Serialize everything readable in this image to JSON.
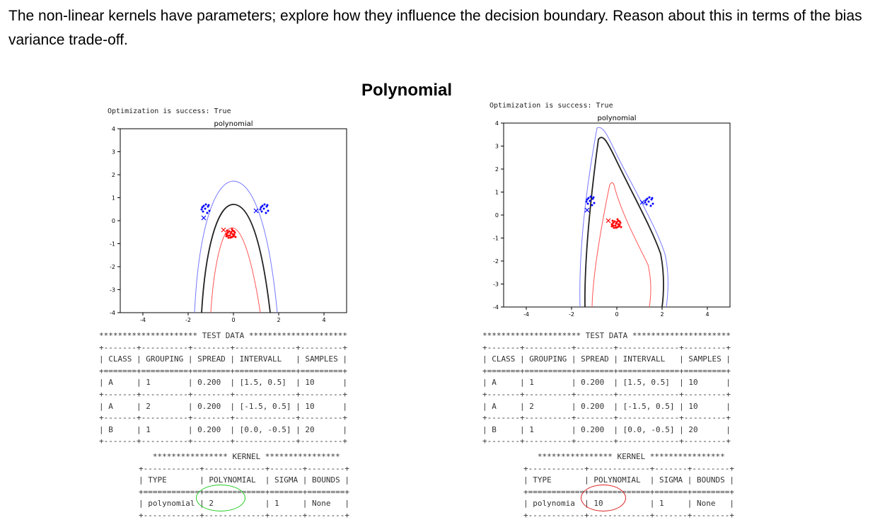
{
  "instruction_text": "The non-linear kernels have parameters; explore how they influence the decision boundary. Reason about this in terms of the bias variance trade-off.",
  "section_title": "Polynomial",
  "panels": [
    {
      "optimization_text": "Optimization is success: True",
      "plot_title": "polynomial",
      "xticks": [
        "-4",
        "-2",
        "0",
        "2",
        "4"
      ],
      "yticks": [
        "4",
        "3",
        "2",
        "1",
        "0",
        "-1",
        "-2",
        "-3",
        "-4"
      ],
      "test_data_banner": "********************* TEST DATA *********************",
      "test_table": {
        "headers": [
          "CLASS",
          "GROUPING",
          "SPREAD",
          "INTERVALL",
          "SAMPLES"
        ],
        "rows": [
          [
            "A",
            "1",
            "0.200",
            "[1.5, 0.5]",
            "10"
          ],
          [
            "A",
            "2",
            "0.200",
            "[-1.5, 0.5]",
            "10"
          ],
          [
            "B",
            "1",
            "0.200",
            "[0.0, -0.5]",
            "20"
          ]
        ]
      },
      "kernel_banner": "**************** KERNEL ****************",
      "kernel_table": {
        "headers": [
          "TYPE",
          "POLYNOMIAL",
          "SIGMA",
          "BOUNDS"
        ],
        "row": [
          "polynomial",
          "2",
          "1",
          "None"
        ]
      },
      "highlight_color": "#22cc22"
    },
    {
      "optimization_text": "Optimization is success: True",
      "plot_title": "polynomial",
      "xticks": [
        "-4",
        "-2",
        "0",
        "2",
        "4"
      ],
      "yticks": [
        "4",
        "3",
        "2",
        "1",
        "0",
        "-1",
        "-2",
        "-3",
        "-4"
      ],
      "test_data_banner": "********************* TEST DATA *********************",
      "test_table": {
        "headers": [
          "CLASS",
          "GROUPING",
          "SPREAD",
          "INTERVALL",
          "SAMPLES"
        ],
        "rows": [
          [
            "A",
            "1",
            "0.200",
            "[1.5, 0.5]",
            "10"
          ],
          [
            "A",
            "2",
            "0.200",
            "[-1.5, 0.5]",
            "10"
          ],
          [
            "B",
            "1",
            "0.200",
            "[0.0, -0.5]",
            "20"
          ]
        ]
      },
      "kernel_banner": "**************** KERNEL ****************",
      "kernel_table": {
        "headers": [
          "TYPE",
          "POLYNOMIAL",
          "SIGMA",
          "BOUNDS"
        ],
        "row": [
          "polynomia",
          "10",
          "1",
          "None"
        ]
      },
      "highlight_color": "#dd2222"
    }
  ]
}
